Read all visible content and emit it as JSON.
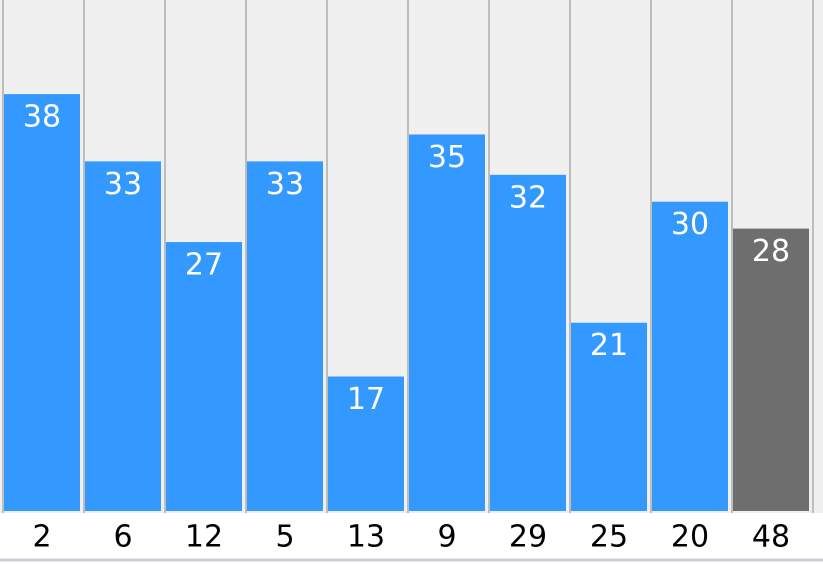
{
  "chart_data": {
    "type": "bar",
    "categories": [
      "2",
      "6",
      "12",
      "5",
      "13",
      "9",
      "29",
      "25",
      "20",
      "48"
    ],
    "values": [
      38,
      33,
      27,
      33,
      17,
      35,
      32,
      21,
      30,
      28
    ],
    "colors": [
      "#3399ff",
      "#3399ff",
      "#3399ff",
      "#3399ff",
      "#3399ff",
      "#3399ff",
      "#3399ff",
      "#3399ff",
      "#3399ff",
      "#6e6e6e"
    ],
    "ylim": [
      7,
      45
    ]
  }
}
